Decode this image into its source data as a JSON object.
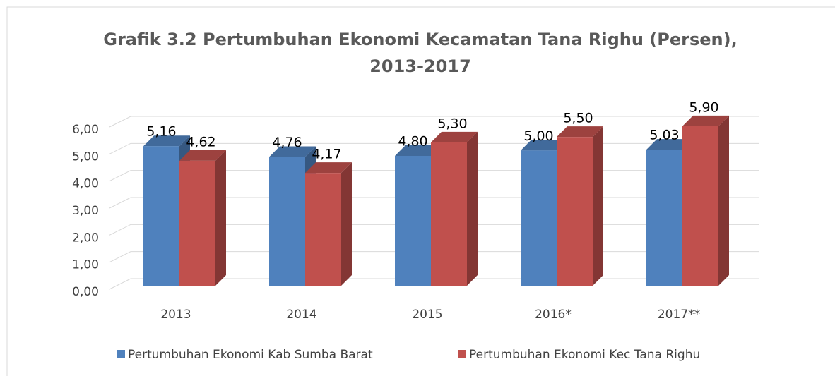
{
  "chart_data": {
    "type": "bar3d",
    "title": [
      "Grafik 3.2 Pertumbuhan Ekonomi Kecamatan Tana Righu (Persen),",
      "2013-2017"
    ],
    "categories": [
      "2013",
      "2014",
      "2015",
      "2016*",
      "2017**"
    ],
    "series": [
      {
        "name": "Pertumbuhan Ekonomi Kab Sumba Barat",
        "color": "#4f81bd",
        "values": [
          5.16,
          4.76,
          4.8,
          5.0,
          5.03
        ],
        "value_labels": [
          "5,16",
          "4,76",
          "4,80",
          "5,00",
          "5,03"
        ]
      },
      {
        "name": "Pertumbuhan Ekonomi Kec Tana Righu",
        "color": "#c0504d",
        "values": [
          4.62,
          4.17,
          5.3,
          5.5,
          5.9
        ],
        "value_labels": [
          "4,62",
          "4,17",
          "5,30",
          "5,50",
          "5,90"
        ]
      }
    ],
    "ylim": [
      0,
      6
    ],
    "yticks": [
      {
        "value": 0,
        "label": "0,00"
      },
      {
        "value": 1,
        "label": "1,00"
      },
      {
        "value": 2,
        "label": "2,00"
      },
      {
        "value": 3,
        "label": "3,00"
      },
      {
        "value": 4,
        "label": "4,00"
      },
      {
        "value": 5,
        "label": "5,00"
      },
      {
        "value": 6,
        "label": "6,00"
      }
    ],
    "grid": true,
    "legend": "bottom"
  }
}
